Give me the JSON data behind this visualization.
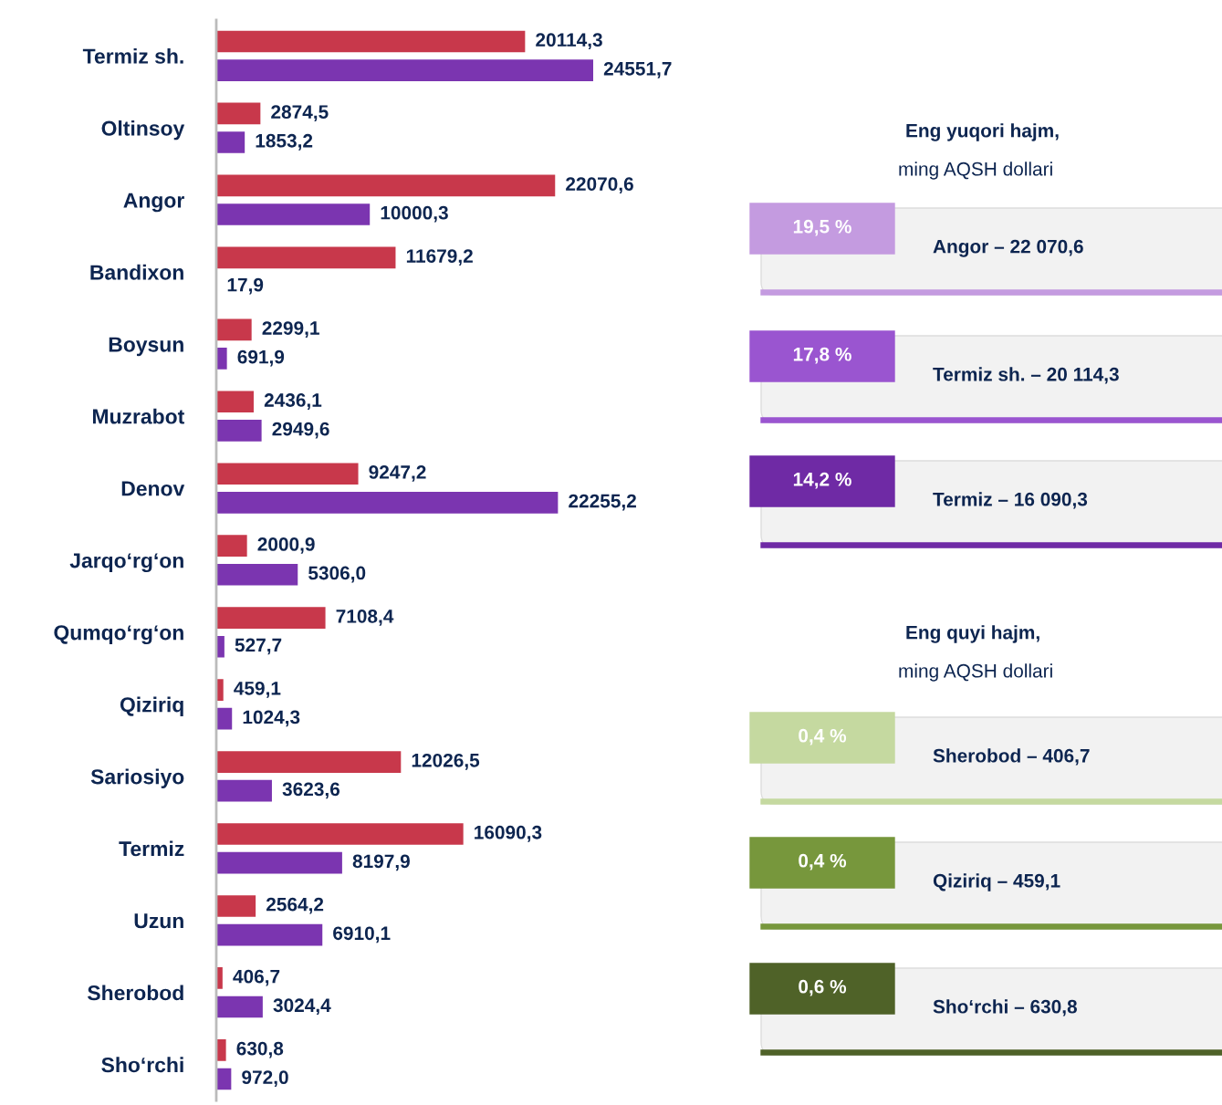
{
  "chart_data": [
    {
      "type": "bar",
      "orientation": "horizontal",
      "tick_labels": "y",
      "grid": false,
      "legend": false,
      "categories": [
        "Termiz sh.",
        "Oltinsoy",
        "Angor",
        "Bandixon",
        "Boysun",
        "Muzrabot",
        "Denov",
        "Jarqo‘rg‘on",
        "Qumqo‘rg‘on",
        "Qiziriq",
        "Sariosiyo",
        "Termiz",
        "Uzun",
        "Sherobod",
        "Sho‘rchi"
      ],
      "series": [
        {
          "color": "#c8384b",
          "values": [
            20114.3,
            2874.5,
            22070.6,
            11679.2,
            2299.1,
            2436.1,
            9247.2,
            2000.9,
            7108.4,
            459.1,
            12026.5,
            16090.3,
            2564.2,
            406.7,
            630.8
          ],
          "value_labels": [
            "20114,3",
            "2874,5",
            "22070,6",
            "11679,2",
            "2299,1",
            "2436,1",
            "9247,2",
            "2000,9",
            "7108,4",
            "459,1",
            "12026,5",
            "16090,3",
            "2564,2",
            "406,7",
            "630,8"
          ]
        },
        {
          "color": "#7b35b0",
          "values": [
            24551.7,
            1853.2,
            10000.3,
            17.9,
            691.9,
            2949.6,
            22255.2,
            5306.0,
            527.7,
            1024.3,
            3623.6,
            8197.9,
            6910.1,
            3024.4,
            972.0
          ],
          "value_labels": [
            "24551,7",
            "1853,2",
            "10000,3",
            "17,9",
            "691,9",
            "2949,6",
            "22255,2",
            "5306,0",
            "527,7",
            "1024,3",
            "3623,6",
            "8197,9",
            "6910,1",
            "3024,4",
            "972,0"
          ]
        }
      ]
    },
    {
      "type": "other",
      "annotations": [
        "Eng yuqori hajm,",
        "ming AQSH dollari",
        "19,5 %",
        "Angor – 22 070,6",
        "17,8 %",
        "Termiz sh. – 20 114,3",
        "14,2 %",
        "Termiz – 16 090,3",
        "Eng quyi hajm,",
        "ming AQSH dollari",
        "0,4 %",
        "Sherobod – 406,7",
        "0,4 %",
        "Qiziriq – 459,1",
        "0,6 %",
        "Sho‘rchi – 630,8"
      ],
      "colors": [
        "#c49be0",
        "#9a55d0",
        "#6f2aa5",
        "#c5d9a0",
        "#77973c",
        "#4f6228"
      ]
    }
  ]
}
